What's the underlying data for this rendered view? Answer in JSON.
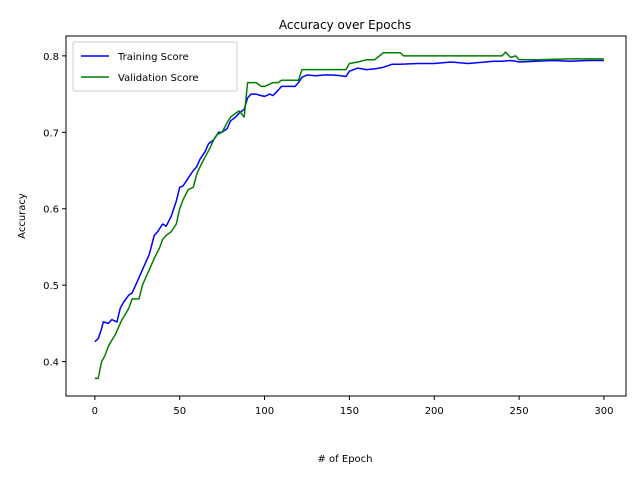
{
  "chart_data": {
    "type": "line",
    "title": "Accuracy over Epochs",
    "xlabel": "# of Epoch",
    "ylabel": "Accuracy",
    "xlim": [
      -17,
      313
    ],
    "ylim": [
      0.355,
      0.826
    ],
    "xticks": [
      0,
      50,
      100,
      150,
      200,
      250,
      300
    ],
    "yticks": [
      0.4,
      0.5,
      0.6,
      0.7,
      0.8
    ],
    "ytick_labels": [
      "0.4",
      "0.5",
      "0.6",
      "0.7",
      "0.8"
    ],
    "grid": false,
    "legend_position": "upper left",
    "series": [
      {
        "name": "Training Score",
        "color": "#0000ff",
        "x": [
          0,
          2,
          4,
          5,
          8,
          10,
          13,
          15,
          17,
          20,
          22,
          25,
          27,
          30,
          32,
          35,
          37,
          40,
          42,
          45,
          48,
          50,
          52,
          55,
          58,
          60,
          62,
          65,
          67,
          70,
          73,
          75,
          78,
          80,
          83,
          85,
          88,
          90,
          92,
          95,
          98,
          100,
          103,
          105,
          108,
          110,
          113,
          116,
          118,
          120,
          122,
          125,
          130,
          135,
          140,
          145,
          148,
          150,
          155,
          160,
          165,
          170,
          175,
          180,
          190,
          200,
          210,
          220,
          230,
          235,
          240,
          245,
          248,
          250,
          260,
          270,
          280,
          290,
          300
        ],
        "y": [
          0.426,
          0.43,
          0.443,
          0.452,
          0.45,
          0.455,
          0.452,
          0.47,
          0.478,
          0.487,
          0.49,
          0.505,
          0.515,
          0.53,
          0.54,
          0.565,
          0.57,
          0.58,
          0.577,
          0.59,
          0.61,
          0.628,
          0.63,
          0.64,
          0.65,
          0.655,
          0.665,
          0.675,
          0.685,
          0.69,
          0.7,
          0.7,
          0.705,
          0.715,
          0.72,
          0.725,
          0.73,
          0.745,
          0.75,
          0.75,
          0.748,
          0.747,
          0.75,
          0.748,
          0.755,
          0.76,
          0.76,
          0.76,
          0.76,
          0.765,
          0.772,
          0.775,
          0.774,
          0.775,
          0.775,
          0.774,
          0.773,
          0.78,
          0.784,
          0.782,
          0.783,
          0.785,
          0.789,
          0.789,
          0.79,
          0.79,
          0.792,
          0.79,
          0.792,
          0.793,
          0.793,
          0.794,
          0.793,
          0.792,
          0.793,
          0.794,
          0.793,
          0.794,
          0.794
        ]
      },
      {
        "name": "Validation Score",
        "color": "#008000",
        "x": [
          0,
          2,
          4,
          6,
          8,
          10,
          12,
          14,
          16,
          18,
          20,
          22,
          24,
          26,
          28,
          30,
          32,
          35,
          38,
          40,
          42,
          45,
          48,
          50,
          52,
          55,
          58,
          60,
          62,
          65,
          68,
          70,
          72,
          75,
          78,
          80,
          83,
          85,
          88,
          90,
          92,
          95,
          98,
          100,
          102,
          105,
          108,
          110,
          115,
          120,
          122,
          130,
          140,
          148,
          150,
          155,
          160,
          165,
          170,
          180,
          182,
          200,
          220,
          240,
          242,
          245,
          248,
          250,
          260,
          280,
          300
        ],
        "y": [
          0.378,
          0.378,
          0.4,
          0.408,
          0.42,
          0.428,
          0.435,
          0.445,
          0.455,
          0.462,
          0.47,
          0.482,
          0.482,
          0.482,
          0.5,
          0.51,
          0.52,
          0.535,
          0.548,
          0.56,
          0.565,
          0.57,
          0.58,
          0.6,
          0.612,
          0.625,
          0.628,
          0.645,
          0.655,
          0.668,
          0.68,
          0.69,
          0.697,
          0.7,
          0.713,
          0.72,
          0.725,
          0.728,
          0.72,
          0.765,
          0.765,
          0.765,
          0.76,
          0.76,
          0.762,
          0.765,
          0.765,
          0.768,
          0.768,
          0.768,
          0.782,
          0.782,
          0.782,
          0.782,
          0.79,
          0.792,
          0.795,
          0.795,
          0.804,
          0.804,
          0.8,
          0.8,
          0.8,
          0.8,
          0.805,
          0.798,
          0.8,
          0.795,
          0.795,
          0.796,
          0.796
        ]
      }
    ]
  }
}
